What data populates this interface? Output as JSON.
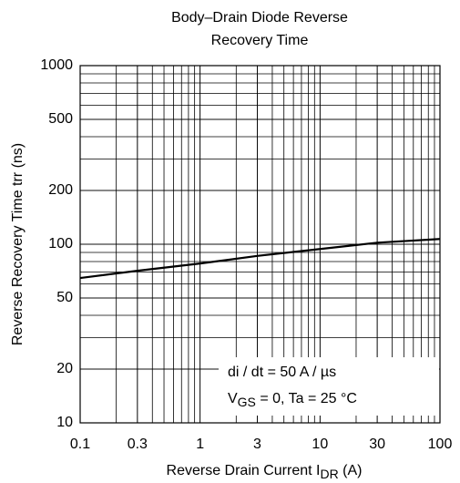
{
  "chart_data": {
    "type": "line",
    "title": [
      "Body–Drain Diode Reverse",
      "Recovery Time"
    ],
    "ylabel": "Reverse Recovery Time   trr   (ns)",
    "xlabel": [
      "Reverse Drain Current   I",
      "DR",
      "  (A)"
    ],
    "annotations": [
      [
        "di / dt = 50 A / µs"
      ],
      [
        "V",
        "GS",
        " = 0, Ta = 25 °C"
      ]
    ],
    "x": [
      0.1,
      0.3,
      1,
      3,
      10,
      30,
      100
    ],
    "series": [
      {
        "name": "trr",
        "color": "#000000",
        "values": [
          64.7,
          71,
          78,
          86,
          94,
          102,
          107
        ]
      }
    ],
    "xlim": [
      0.1,
      100
    ],
    "ylim": [
      10,
      1000
    ],
    "xticks": [
      0.1,
      0.3,
      1,
      3,
      10,
      30,
      100
    ],
    "yticks": [
      10,
      20,
      50,
      100,
      200,
      500,
      1000
    ],
    "xscale": "log",
    "yscale": "log",
    "grid": true,
    "minor_grid": true
  }
}
